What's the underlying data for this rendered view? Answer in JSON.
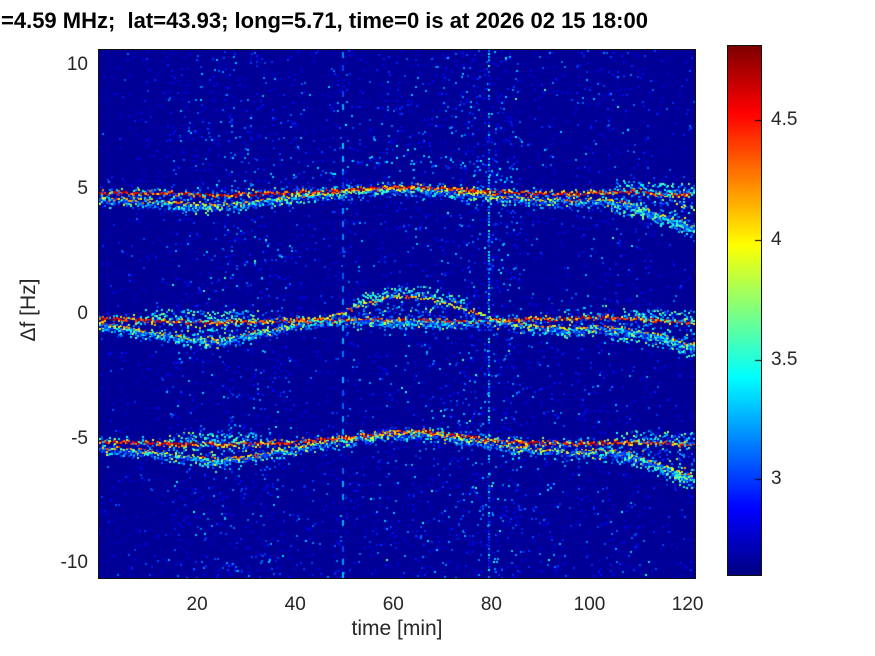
{
  "chart_data": {
    "type": "heatmap",
    "title": "=4.59 MHz;  lat=43.93; long=5.71, time=0 is at 2026 02 15 18:00",
    "xlabel": "time [min]",
    "ylabel": "Δf [Hz]",
    "xlim": [
      0,
      121.5
    ],
    "ylim": [
      -10.6,
      10.6
    ],
    "xticks": [
      20,
      40,
      60,
      80,
      100,
      120
    ],
    "yticks": [
      10,
      5,
      0,
      -5,
      -10
    ],
    "grid": false,
    "colormap": "jet",
    "colorbar": {
      "ticks": [
        3,
        3.5,
        4,
        4.5
      ],
      "range": [
        2.6,
        4.81
      ],
      "position": "right"
    },
    "background_value": 2.65,
    "axis_color": "#262626",
    "title_color": "#000000",
    "bands": [
      {
        "name": "upper-doppler-trace",
        "t": [
          0,
          6,
          12,
          18,
          24,
          30,
          36,
          42,
          48,
          54,
          60,
          66,
          72,
          78,
          84,
          90,
          96,
          102,
          108,
          114,
          121
        ],
        "main": [
          4.9,
          4.9,
          4.87,
          4.84,
          4.82,
          4.85,
          4.9,
          4.93,
          4.97,
          5.05,
          5.13,
          5.12,
          5.05,
          4.97,
          4.9,
          4.87,
          4.85,
          4.92,
          5.0,
          4.82,
          4.85
        ],
        "secondary": [
          4.7,
          4.62,
          4.54,
          4.45,
          4.42,
          4.5,
          4.66,
          4.8,
          4.9,
          5.0,
          5.06,
          5.05,
          4.95,
          4.84,
          4.7,
          4.64,
          4.6,
          4.62,
          4.45,
          4.05,
          3.55
        ]
      },
      {
        "name": "center-doppler-trace",
        "t": [
          0,
          6,
          12,
          18,
          24,
          30,
          36,
          42,
          48,
          54,
          60,
          66,
          72,
          78,
          84,
          90,
          96,
          102,
          108,
          114,
          121
        ],
        "main": [
          -0.15,
          -0.18,
          -0.24,
          -0.28,
          -0.3,
          -0.28,
          -0.25,
          -0.22,
          -0.2,
          -0.2,
          -0.22,
          -0.25,
          -0.27,
          -0.25,
          -0.2,
          -0.17,
          -0.14,
          -0.1,
          -0.15,
          -0.25,
          -0.3
        ],
        "secondary": [
          -0.35,
          -0.55,
          -0.75,
          -0.95,
          -1.0,
          -0.8,
          -0.55,
          -0.3,
          -0.05,
          0.45,
          0.75,
          0.72,
          0.4,
          -0.05,
          -0.35,
          -0.5,
          -0.58,
          -0.5,
          -0.6,
          -0.85,
          -1.2
        ]
      },
      {
        "name": "lower-doppler-trace",
        "t": [
          0,
          6,
          12,
          18,
          24,
          30,
          36,
          42,
          48,
          54,
          60,
          66,
          72,
          78,
          84,
          90,
          96,
          102,
          108,
          114,
          121
        ],
        "main": [
          -5.1,
          -5.12,
          -5.15,
          -5.18,
          -5.2,
          -5.18,
          -5.14,
          -5.08,
          -5.0,
          -4.85,
          -4.7,
          -4.68,
          -4.8,
          -5.0,
          -5.1,
          -5.14,
          -5.17,
          -5.13,
          -5.1,
          -5.15,
          -5.2
        ],
        "secondary": [
          -5.3,
          -5.42,
          -5.55,
          -5.7,
          -5.8,
          -5.7,
          -5.48,
          -5.28,
          -5.08,
          -4.92,
          -4.78,
          -4.76,
          -4.9,
          -5.12,
          -5.32,
          -5.42,
          -5.5,
          -5.45,
          -5.55,
          -6.0,
          -6.55
        ]
      }
    ],
    "halo_arc": {
      "t": [
        36,
        44,
        52,
        60,
        66,
        72,
        78,
        84
      ],
      "f": [
        5.45,
        5.7,
        6.0,
        6.25,
        6.28,
        6.1,
        5.8,
        5.55
      ]
    },
    "noise_columns": [
      {
        "t0": 13.5,
        "t1": 20,
        "density": 0.35
      },
      {
        "t0": 20.5,
        "t1": 29,
        "density": 0.5
      },
      {
        "t0": 29.5,
        "t1": 38,
        "density": 0.45
      },
      {
        "t0": 38.5,
        "t1": 44,
        "density": 0.18
      },
      {
        "t0": 46,
        "t1": 54,
        "density": 0.22
      },
      {
        "t0": 55,
        "t1": 63,
        "density": 0.28
      },
      {
        "t0": 63.5,
        "t1": 72,
        "density": 0.32
      },
      {
        "t0": 72.5,
        "t1": 86,
        "density": 0.75
      },
      {
        "t0": 88,
        "t1": 95,
        "density": 0.22
      },
      {
        "t0": 97,
        "t1": 106,
        "density": 0.28
      },
      {
        "t0": 106.5,
        "t1": 112,
        "density": 0.15
      }
    ],
    "dashed_line_t": 49.5,
    "bright_streak_t": 79.3,
    "background_speckle_density": 0.05
  }
}
